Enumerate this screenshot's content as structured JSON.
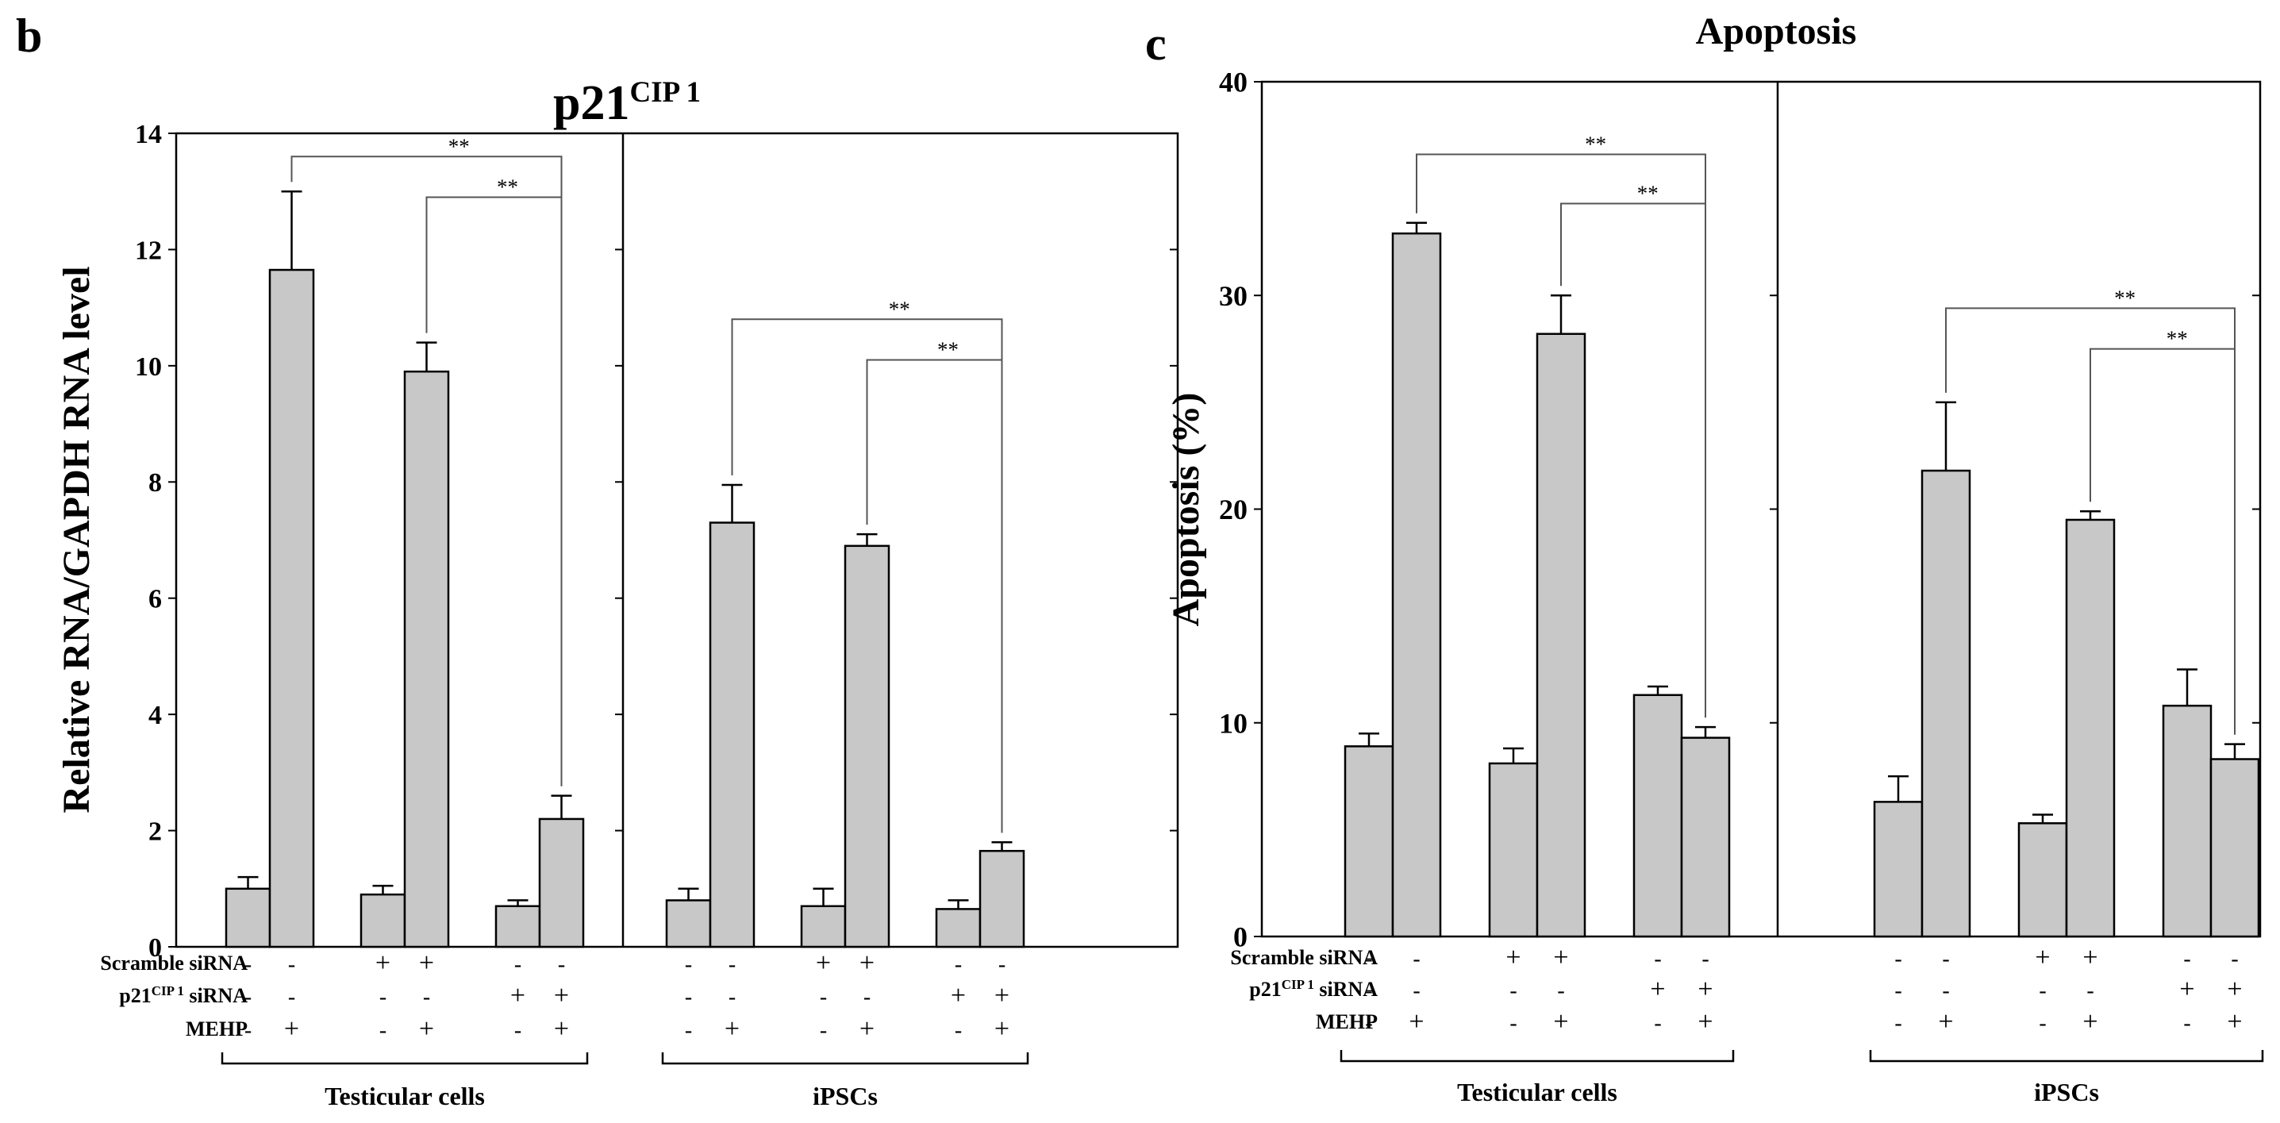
{
  "colors": {
    "bar": "#c8c8c8",
    "stroke": "#000000",
    "bracket": "#555555"
  },
  "chart_data": [
    {
      "panel_letter": "b",
      "title_main": "p21",
      "title_sup": "CIP 1",
      "type": "bar",
      "ylabel": "Relative RNA/GAPDH RNA level",
      "ylim": [
        0,
        14
      ],
      "yticks": [
        "0",
        "2",
        "4",
        "6",
        "8",
        "10",
        "12",
        "14"
      ],
      "treatment_rows": [
        {
          "label": "Scramble siRNA",
          "sup": ""
        },
        {
          "label": "p21",
          "sup": "CIP 1",
          "suffix": " siRNA"
        },
        {
          "label": "MEHP",
          "sup": ""
        }
      ],
      "groups": [
        {
          "name": "Testicular cells",
          "values": [
            1.0,
            11.65,
            0.9,
            9.9,
            0.7,
            2.2
          ],
          "errors": [
            0.2,
            1.35,
            0.15,
            0.5,
            0.1,
            0.4
          ],
          "conditions": [
            [
              "-",
              "-",
              "-"
            ],
            [
              "-",
              "-",
              "+"
            ],
            [
              "+",
              "-",
              "-"
            ],
            [
              "+",
              "-",
              "+"
            ],
            [
              "-",
              "+",
              "-"
            ],
            [
              "-",
              "+",
              "+"
            ]
          ],
          "brackets": [
            {
              "from": 1,
              "to": 5,
              "level": 13.6,
              "label": "**"
            },
            {
              "from": 3,
              "to": 5,
              "level": 12.9,
              "label": "**"
            }
          ]
        },
        {
          "name": "iPSCs",
          "values": [
            0.8,
            7.3,
            0.7,
            6.9,
            0.65,
            1.65
          ],
          "errors": [
            0.2,
            0.65,
            0.3,
            0.2,
            0.15,
            0.15
          ],
          "conditions": [
            [
              "-",
              "-",
              "-"
            ],
            [
              "-",
              "-",
              "+"
            ],
            [
              "+",
              "-",
              "-"
            ],
            [
              "+",
              "-",
              "+"
            ],
            [
              "-",
              "+",
              "-"
            ],
            [
              "-",
              "+",
              "+"
            ]
          ],
          "brackets": [
            {
              "from": 1,
              "to": 5,
              "level": 10.8,
              "label": "**"
            },
            {
              "from": 3,
              "to": 5,
              "level": 10.1,
              "label": "**"
            }
          ]
        }
      ]
    },
    {
      "panel_letter": "c",
      "title_main": "Apoptosis",
      "title_sup": "",
      "type": "bar",
      "ylabel": "Apoptosis (%)",
      "ylim": [
        0,
        40
      ],
      "yticks": [
        "0",
        "10",
        "20",
        "30",
        "40"
      ],
      "treatment_rows": [
        {
          "label": "Scramble siRNA",
          "sup": ""
        },
        {
          "label": "p21",
          "sup": "CIP 1",
          "suffix": " siRNA"
        },
        {
          "label": "MEHP",
          "sup": ""
        }
      ],
      "groups": [
        {
          "name": "Testicular cells",
          "values": [
            8.9,
            32.9,
            8.1,
            28.2,
            11.3,
            9.3
          ],
          "errors": [
            0.6,
            0.5,
            0.7,
            1.8,
            0.4,
            0.5
          ],
          "conditions": [
            [
              "-",
              "-",
              "-"
            ],
            [
              "-",
              "-",
              "+"
            ],
            [
              "+",
              "-",
              "-"
            ],
            [
              "+",
              "-",
              "+"
            ],
            [
              "-",
              "+",
              "-"
            ],
            [
              "-",
              "+",
              "+"
            ]
          ],
          "brackets": [
            {
              "from": 1,
              "to": 5,
              "level": 36.6,
              "label": "**"
            },
            {
              "from": 3,
              "to": 5,
              "level": 34.3,
              "label": "**"
            }
          ]
        },
        {
          "name": "iPSCs",
          "values": [
            6.3,
            21.8,
            5.3,
            19.5,
            10.8,
            8.3
          ],
          "errors": [
            1.2,
            3.2,
            0.4,
            0.4,
            1.7,
            0.7
          ],
          "conditions": [
            [
              "-",
              "-",
              "-"
            ],
            [
              "-",
              "-",
              "+"
            ],
            [
              "+",
              "-",
              "-"
            ],
            [
              "+",
              "-",
              "+"
            ],
            [
              "-",
              "+",
              "-"
            ],
            [
              "-",
              "+",
              "+"
            ]
          ],
          "brackets": [
            {
              "from": 1,
              "to": 5,
              "level": 29.4,
              "label": "**"
            },
            {
              "from": 3,
              "to": 5,
              "level": 27.5,
              "label": "**"
            }
          ]
        }
      ]
    }
  ]
}
